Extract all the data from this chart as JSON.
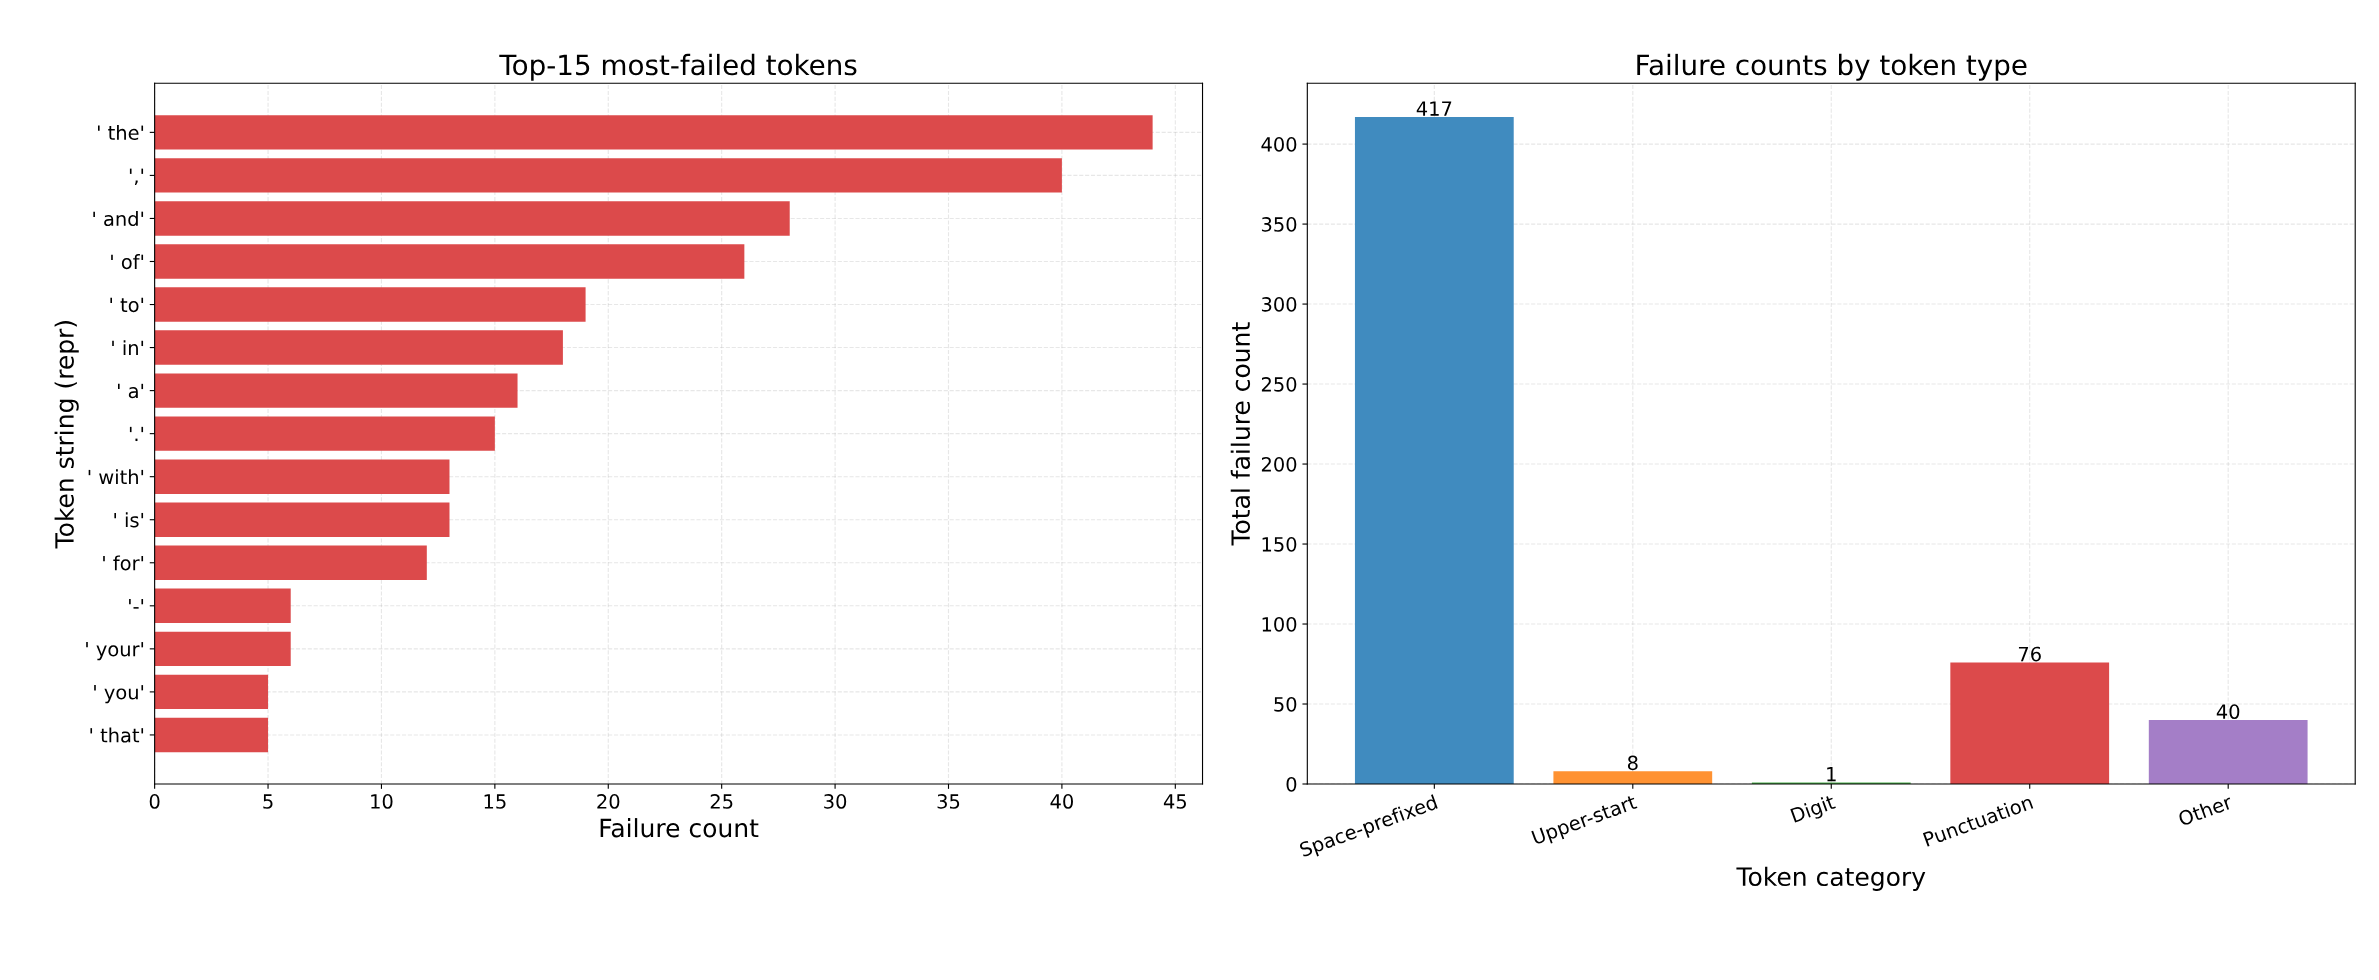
{
  "chart_data": [
    {
      "type": "bar",
      "orientation": "horizontal",
      "title": "Top-15 most-failed tokens",
      "xlabel": "Failure count",
      "ylabel": "Token string (repr)",
      "categories": [
        "' the'",
        "','",
        "' and'",
        "' of'",
        "' to'",
        "' in'",
        "' a'",
        "'.'",
        "' with'",
        "' is'",
        "' for'",
        "'-'",
        "' your'",
        "' you'",
        "' that'"
      ],
      "values": [
        44,
        40,
        28,
        26,
        19,
        18,
        16,
        15,
        13,
        13,
        12,
        6,
        6,
        5,
        5
      ],
      "color": "#dc4a4b",
      "xlim": [
        0,
        46.2
      ],
      "xticks": [
        0,
        5,
        10,
        15,
        20,
        25,
        30,
        35,
        40,
        45
      ],
      "grid": true
    },
    {
      "type": "bar",
      "title": "Failure counts by token type",
      "xlabel": "Token category",
      "ylabel": "Total failure count",
      "categories": [
        "Space-prefixed",
        "Upper-start",
        "Digit",
        "Punctuation",
        "Other"
      ],
      "values": [
        417,
        8,
        1,
        76,
        40
      ],
      "colors": [
        "#408bbf",
        "#ff9232",
        "#4bae4b",
        "#dc4a4b",
        "#a47ec7"
      ],
      "ylim": [
        0,
        438
      ],
      "yticks": [
        0,
        50,
        100,
        150,
        200,
        250,
        300,
        350,
        400
      ],
      "grid": true,
      "data_labels": true
    }
  ]
}
